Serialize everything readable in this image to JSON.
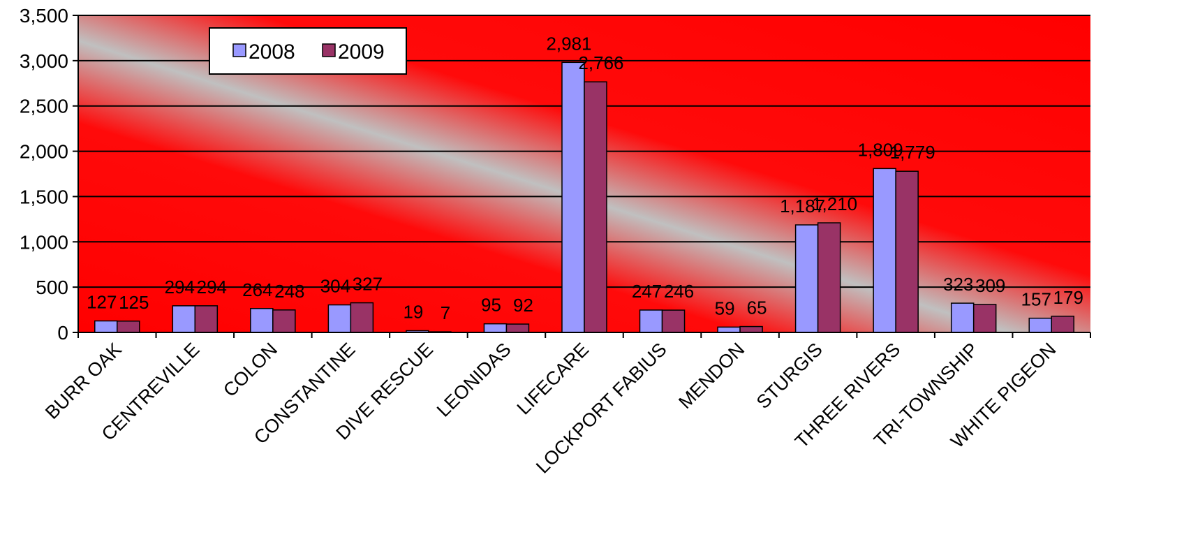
{
  "chart_data": {
    "type": "bar",
    "title": "",
    "xlabel": "",
    "ylabel": "",
    "ylim": [
      0,
      3500
    ],
    "yticks": [
      0,
      500,
      1000,
      1500,
      2000,
      2500,
      3000,
      3500
    ],
    "ytick_labels": [
      "0",
      "500",
      "1,000",
      "1,500",
      "2,000",
      "2,500",
      "3,000",
      "3,500"
    ],
    "grid": true,
    "legend_position": "top-left",
    "categories": [
      "BURR OAK",
      "CENTREVILLE",
      "COLON",
      "CONSTANTINE",
      "DIVE RESCUE",
      "LEONIDAS",
      "LIFECARE",
      "LOCKPORT FABIUS",
      "MENDON",
      "STURGIS",
      "THREE RIVERS",
      "TRI-TOWNSHIP",
      "WHITE PIGEON"
    ],
    "series": [
      {
        "name": "2008",
        "color": "#9999ff",
        "values": [
          127,
          294,
          264,
          304,
          19,
          95,
          2981,
          247,
          59,
          1187,
          1809,
          323,
          157
        ],
        "labels": [
          "127",
          "294",
          "264",
          "304",
          "19",
          "95",
          "2,981",
          "247",
          "59",
          "1,187",
          "1,809",
          "323",
          "157"
        ]
      },
      {
        "name": "2009",
        "color": "#993366",
        "values": [
          125,
          294,
          248,
          327,
          7,
          92,
          2766,
          246,
          65,
          1210,
          1779,
          309,
          179
        ],
        "labels": [
          "125",
          "294",
          "248",
          "327",
          "7",
          "92",
          "2,766",
          "246",
          "65",
          "1,210",
          "1,779",
          "309",
          "179"
        ]
      }
    ],
    "background": {
      "base_color": "#ff0000",
      "band_color": "#c0c0c0"
    }
  }
}
